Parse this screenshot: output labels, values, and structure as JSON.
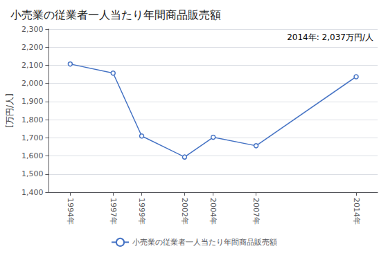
{
  "chart_data": {
    "type": "line",
    "title": "小売業の従業者一人当たり年間商品販売額",
    "ylabel": "[万円/人]",
    "annotation": "2014年: 2,037万円/人",
    "x": [
      1994,
      1997,
      1999,
      2002,
      2004,
      2007,
      2014
    ],
    "series": [
      {
        "name": "小売業の従業者一人当たり年間商品販売額",
        "color": "#4472C4",
        "marker": "circle",
        "values": [
          2107,
          2057,
          1710,
          1594,
          1703,
          1656,
          2037
        ]
      }
    ],
    "xlim": [
      1992.5,
      2015.5
    ],
    "xticks": [
      {
        "value": 1994,
        "label": "1994年"
      },
      {
        "value": 1997,
        "label": "1997年"
      },
      {
        "value": 1999,
        "label": "1999年"
      },
      {
        "value": 2002,
        "label": "2002年"
      },
      {
        "value": 2004,
        "label": "2004年"
      },
      {
        "value": 2007,
        "label": "2007年"
      },
      {
        "value": 2014,
        "label": "2014年"
      }
    ],
    "ylim": [
      1400,
      2300
    ],
    "yticks": [
      {
        "value": 1400,
        "label": "1,400"
      },
      {
        "value": 1500,
        "label": "1,500"
      },
      {
        "value": 1600,
        "label": "1,600"
      },
      {
        "value": 1700,
        "label": "1,700"
      },
      {
        "value": 1800,
        "label": "1,800"
      },
      {
        "value": 1900,
        "label": "1,900"
      },
      {
        "value": 2000,
        "label": "2,000"
      },
      {
        "value": 2100,
        "label": "2,100"
      },
      {
        "value": 2200,
        "label": "2,200"
      },
      {
        "value": 2300,
        "label": "2,300"
      }
    ],
    "grid": true,
    "legend": "bottom"
  }
}
